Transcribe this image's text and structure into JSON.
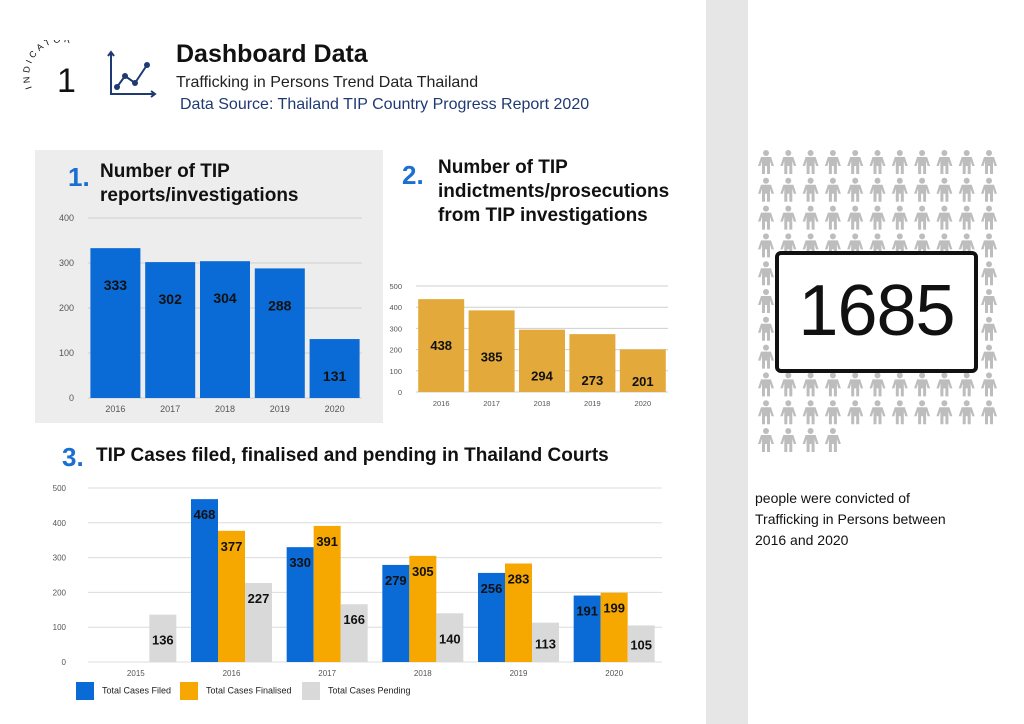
{
  "header": {
    "indicator_label": "INDICATOR",
    "indicator_number": "1",
    "title": "Dashboard Data",
    "subtitle": "Trafficking in Persons Trend Data Thailand",
    "source": "Data Source:  Thailand TIP Country Progress Report 2020"
  },
  "colors": {
    "blue": "#0a6ad6",
    "gold": "#e3a93a",
    "orange": "#f7a800",
    "gray": "#d9d9d9"
  },
  "section1": {
    "number": "1.",
    "title_line1": "Number of TIP",
    "title_line2": "reports/investigations"
  },
  "section2": {
    "number": "2.",
    "title_line1": "Number of TIP",
    "title_line2": "indictments/prosecutions",
    "title_line3": "from TIP investigations"
  },
  "section3": {
    "number": "3.",
    "title": "TIP Cases filed, finalised and pending in Thailand Courts"
  },
  "sidebar": {
    "big_number": "1685",
    "caption_line1": "people were convicted of",
    "caption_line2": "Trafficking in Persons between",
    "caption_line3": "2016 and 2020",
    "people_icon": "person-icon"
  },
  "chart_data": [
    {
      "type": "bar",
      "title": "Number of TIP reports/investigations",
      "categories": [
        "2016",
        "2017",
        "2018",
        "2019",
        "2020"
      ],
      "values": [
        333,
        302,
        304,
        288,
        131
      ],
      "ylim": [
        0,
        400
      ],
      "yticks": [
        0,
        100,
        200,
        300,
        400
      ]
    },
    {
      "type": "bar",
      "title": "Number of TIP indictments/prosecutions from TIP investigations",
      "categories": [
        "2016",
        "2017",
        "2018",
        "2019",
        "2020"
      ],
      "values": [
        438,
        385,
        294,
        273,
        201
      ],
      "ylim": [
        0,
        500
      ],
      "yticks": [
        0,
        100,
        200,
        300,
        400,
        500
      ]
    },
    {
      "type": "bar",
      "title": "TIP Cases filed, finalised and pending in Thailand Courts",
      "categories": [
        "2015",
        "2016",
        "2017",
        "2018",
        "2019",
        "2020"
      ],
      "series": [
        {
          "name": "Total Cases Filed",
          "values": [
            null,
            468,
            330,
            279,
            256,
            191
          ]
        },
        {
          "name": "Total Cases Finalised",
          "values": [
            null,
            377,
            391,
            305,
            283,
            199
          ]
        },
        {
          "name": "Total Cases Pending",
          "values": [
            136,
            227,
            166,
            140,
            113,
            105
          ]
        }
      ],
      "ylim": [
        0,
        500
      ],
      "yticks": [
        0,
        100,
        200,
        300,
        400,
        500
      ],
      "legend": "bottom-left"
    }
  ]
}
